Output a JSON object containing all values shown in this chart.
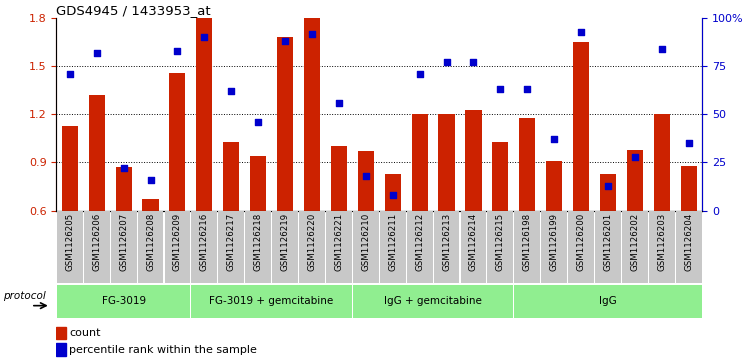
{
  "title": "GDS4945 / 1433953_at",
  "samples": [
    "GSM1126205",
    "GSM1126206",
    "GSM1126207",
    "GSM1126208",
    "GSM1126209",
    "GSM1126216",
    "GSM1126217",
    "GSM1126218",
    "GSM1126219",
    "GSM1126220",
    "GSM1126221",
    "GSM1126210",
    "GSM1126211",
    "GSM1126212",
    "GSM1126213",
    "GSM1126214",
    "GSM1126215",
    "GSM1126198",
    "GSM1126199",
    "GSM1126200",
    "GSM1126201",
    "GSM1126202",
    "GSM1126203",
    "GSM1126204"
  ],
  "count_values": [
    1.13,
    1.32,
    0.87,
    0.67,
    1.46,
    1.8,
    1.03,
    0.94,
    1.68,
    1.8,
    1.0,
    0.97,
    0.83,
    1.2,
    1.2,
    1.23,
    1.03,
    1.18,
    0.91,
    1.65,
    0.83,
    0.98,
    1.2,
    0.88
  ],
  "percentile_values": [
    71,
    82,
    22,
    16,
    83,
    90,
    62,
    46,
    88,
    92,
    56,
    18,
    8,
    71,
    77,
    77,
    63,
    63,
    37,
    93,
    13,
    28,
    84,
    35
  ],
  "groups": [
    {
      "label": "FG-3019",
      "start": 0,
      "end": 5
    },
    {
      "label": "FG-3019 + gemcitabine",
      "start": 5,
      "end": 11
    },
    {
      "label": "IgG + gemcitabine",
      "start": 11,
      "end": 17
    },
    {
      "label": "IgG",
      "start": 17,
      "end": 24
    }
  ],
  "ylim_left": [
    0.6,
    1.8
  ],
  "ylim_right": [
    0,
    100
  ],
  "yticks_left": [
    0.6,
    0.9,
    1.2,
    1.5,
    1.8
  ],
  "yticks_right": [
    0,
    25,
    50,
    75,
    100
  ],
  "ytick_labels_right": [
    "0",
    "25",
    "50",
    "75",
    "100%"
  ],
  "bar_color": "#cc2200",
  "dot_color": "#0000cc",
  "bar_width": 0.6,
  "group_color": "#90ee90",
  "xtick_bg_color": "#c8c8c8",
  "legend_count_label": "count",
  "legend_pct_label": "percentile rank within the sample"
}
